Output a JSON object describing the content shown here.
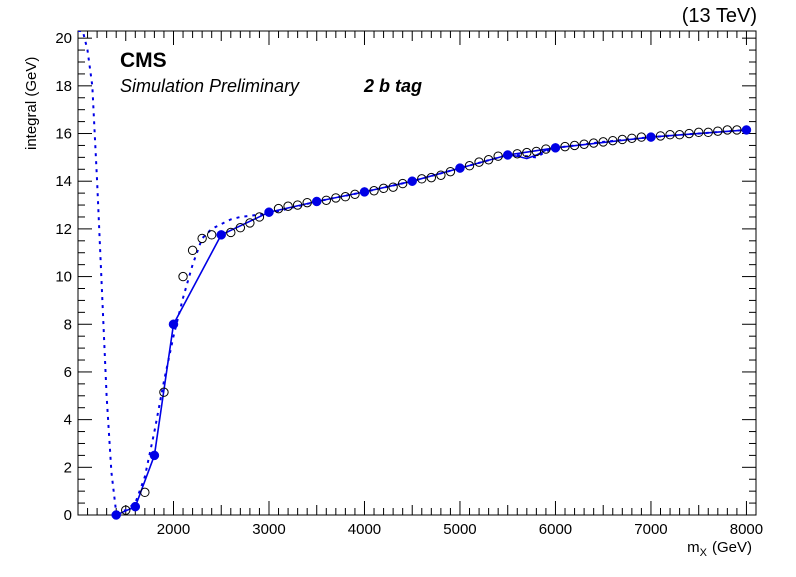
{
  "header": {
    "energy_label": "(13 TeV)",
    "cms_label": "CMS",
    "sim_label": "Simulation Preliminary",
    "tag_label": "2 b tag"
  },
  "chart_data": {
    "type": "scatter",
    "xlabel": "m",
    "xlabel_sub": "X",
    "xlabel_unit": "(GeV)",
    "ylabel": "integral (GeV)",
    "xlim": [
      1000,
      8100
    ],
    "ylim": [
      0,
      20.3
    ],
    "xticks": [
      2000,
      3000,
      4000,
      5000,
      6000,
      7000,
      8000
    ],
    "yticks": [
      0,
      2,
      4,
      6,
      8,
      10,
      12,
      14,
      16,
      18,
      20
    ],
    "grid": false,
    "colors": {
      "main": "#0000e6",
      "open": "#000000"
    },
    "series": [
      {
        "style": "filled-markers-solid-line",
        "x": [
          1400,
          1600,
          1800,
          2000,
          2500,
          3000,
          3500,
          4000,
          4500,
          5000,
          5500,
          6000,
          7000,
          8000
        ],
        "y": [
          0.0,
          0.35,
          2.5,
          8.0,
          11.75,
          12.7,
          13.15,
          13.55,
          14.0,
          14.55,
          15.1,
          15.4,
          15.85,
          16.15
        ]
      },
      {
        "style": "open-markers",
        "x": [
          1500,
          1700,
          1900,
          2100,
          2200,
          2300,
          2400,
          2600,
          2700,
          2800,
          2900,
          3100,
          3200,
          3300,
          3400,
          3600,
          3700,
          3800,
          3900,
          4100,
          4200,
          4300,
          4400,
          4600,
          4700,
          4800,
          4900,
          5100,
          5200,
          5300,
          5400,
          5600,
          5700,
          5800,
          5900,
          6100,
          6200,
          6300,
          6400,
          6500,
          6600,
          6700,
          6800,
          6900,
          7100,
          7200,
          7300,
          7400,
          7500,
          7600,
          7700,
          7800,
          7900
        ],
        "y": [
          0.2,
          0.95,
          5.15,
          10.0,
          11.1,
          11.6,
          11.75,
          11.85,
          12.05,
          12.25,
          12.5,
          12.85,
          12.95,
          13.0,
          13.1,
          13.2,
          13.3,
          13.35,
          13.45,
          13.6,
          13.7,
          13.75,
          13.9,
          14.1,
          14.15,
          14.25,
          14.4,
          14.65,
          14.8,
          14.9,
          15.05,
          15.15,
          15.2,
          15.25,
          15.35,
          15.45,
          15.5,
          15.55,
          15.6,
          15.65,
          15.7,
          15.75,
          15.8,
          15.85,
          15.9,
          15.95,
          15.95,
          16.0,
          16.05,
          16.05,
          16.1,
          16.15,
          16.15
        ]
      },
      {
        "style": "dashed-line",
        "x": [
          1000,
          1050,
          1100,
          1150,
          1200,
          1300,
          1350,
          1400,
          1500,
          1600,
          1700,
          1800,
          1900,
          2000,
          2100,
          2200,
          2300,
          2400,
          2500,
          2600,
          2700,
          2800,
          2900,
          3000,
          3500,
          4000,
          4500,
          5000,
          5500,
          5600,
          5800,
          5900,
          6000,
          6500,
          7000,
          7500,
          8000
        ],
        "y": [
          20.3,
          20.3,
          19.5,
          18.0,
          14.0,
          5.0,
          1.8,
          0.1,
          0.2,
          0.5,
          1.6,
          3.5,
          5.6,
          7.5,
          9.1,
          10.5,
          11.6,
          12.0,
          12.2,
          12.4,
          12.5,
          12.55,
          12.6,
          12.65,
          13.15,
          13.55,
          14.0,
          14.55,
          15.1,
          15.1,
          15.0,
          15.25,
          15.4,
          15.65,
          15.85,
          16.0,
          16.15
        ]
      },
      {
        "style": "solid-line-thin",
        "x": [
          5500,
          5600,
          5700,
          5800,
          5900,
          6000
        ],
        "y": [
          15.1,
          15.05,
          14.95,
          15.1,
          15.3,
          15.4
        ]
      }
    ]
  }
}
